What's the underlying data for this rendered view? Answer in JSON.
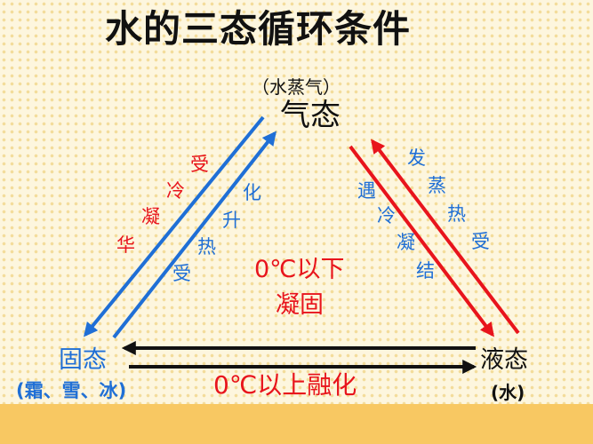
{
  "title": "水的三态循环条件",
  "states": {
    "gas": {
      "label": "气态",
      "note": "（水蒸气）"
    },
    "solid": {
      "label": "固态",
      "note": "(霜、雪、冰)"
    },
    "liquid": {
      "label": "液态",
      "note": "(水)"
    }
  },
  "processes": {
    "deposition": [
      "受",
      "冷",
      "凝",
      "华"
    ],
    "sublimation": [
      "化",
      "升",
      "热",
      "受"
    ],
    "condensation": [
      "遇",
      "冷",
      "凝",
      "结"
    ],
    "evaporation": [
      "发",
      "蒸",
      "热",
      "受"
    ],
    "freezing": [
      "0℃以下",
      "凝固"
    ],
    "melting": "0℃以上融化"
  },
  "colors": {
    "blue": "#1f6fd6",
    "red": "#e8141c",
    "black": "#111111",
    "ground": "#f8c862"
  }
}
